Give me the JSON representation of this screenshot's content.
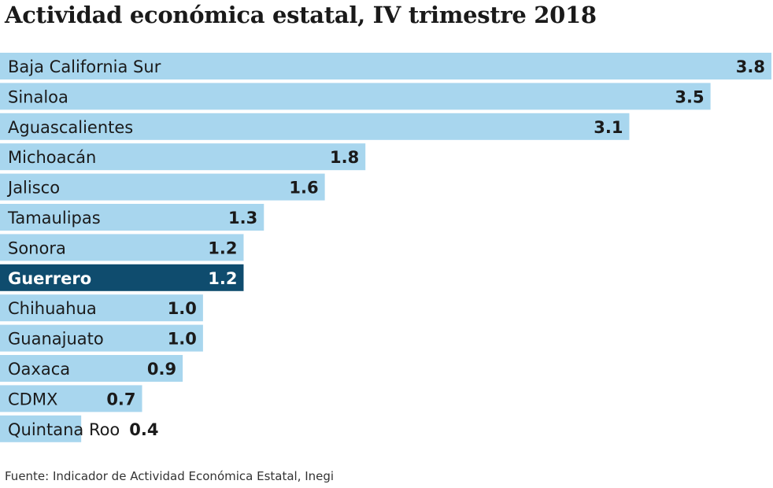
{
  "chart_data": {
    "type": "bar",
    "orientation": "horizontal",
    "title": "Actividad económica estatal, IV trimestre 2018",
    "categories": [
      "Baja California Sur",
      "Sinaloa",
      "Aguascalientes",
      "Michoacán",
      "Jalisco",
      "Tamaulipas",
      "Sonora",
      "Guerrero",
      "Chihuahua",
      "Guanajuato",
      "Oaxaca",
      "CDMX",
      "Quintana Roo"
    ],
    "values": [
      3.8,
      3.5,
      3.1,
      1.8,
      1.6,
      1.3,
      1.2,
      1.2,
      1.0,
      1.0,
      0.9,
      0.7,
      0.4
    ],
    "labels": [
      "3.8",
      "3.5",
      "3.1",
      "1.8",
      "1.6",
      "1.3",
      "1.2",
      "1.2",
      "1.0",
      "1.0",
      "0.9",
      "0.7",
      "0.4"
    ],
    "highlight": "Guerrero",
    "xlim": [
      0,
      3.8
    ],
    "grid": false,
    "colors": {
      "bar": "#a8d6ee",
      "highlight": "#0f4c6e",
      "text": "#1a1a1a",
      "highlight_text": "#ffffff"
    }
  },
  "source": "Fuente: Indicador de Actividad Económica Estatal, Inegi"
}
